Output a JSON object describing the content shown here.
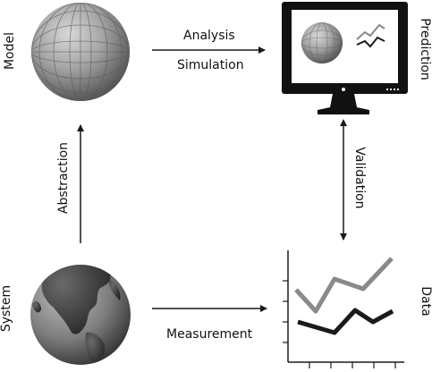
{
  "labels": {
    "model": "Model",
    "prediction": "Prediction",
    "system": "System",
    "data": "Data"
  },
  "arrows": {
    "analysis": "Analysis",
    "simulation": "Simulation",
    "abstraction": "Abstraction",
    "validation": "Validation",
    "measurement": "Measurement"
  },
  "colors": {
    "arrow": "#1a1a1a",
    "monitor": "#111111",
    "grey_line": "#8a8a8a",
    "dark_line": "#1a1a1a"
  }
}
